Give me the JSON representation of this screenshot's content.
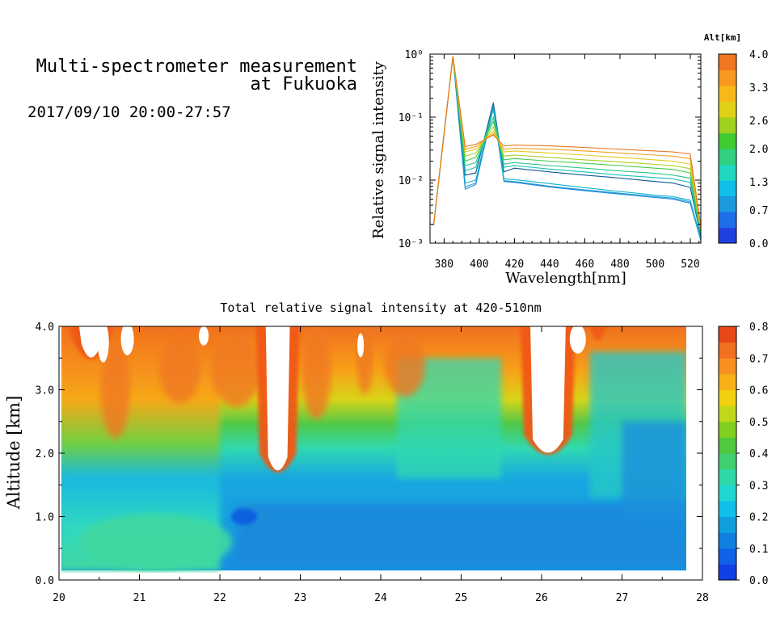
{
  "header": {
    "title_line1": "Multi-spectrometer measurement",
    "title_line2": "at Fukuoka",
    "datetime": "2017/09/10 20:00-27:57"
  },
  "chart_data": [
    {
      "type": "line",
      "xlabel": "Wavelength[nm]",
      "ylabel": "Relative signal intensity",
      "xlim": [
        372,
        526
      ],
      "ylim": [
        0.001,
        1
      ],
      "y_scale": "log",
      "x_ticks": [
        380,
        400,
        420,
        440,
        460,
        480,
        500,
        520
      ],
      "y_ticks": [
        {
          "value": 0.001,
          "label": "10⁻³"
        },
        {
          "value": 0.01,
          "label": "10⁻²"
        },
        {
          "value": 0.1,
          "label": "10⁻¹"
        },
        {
          "value": 1,
          "label": "10⁰"
        }
      ],
      "x": [
        374,
        385,
        392,
        398,
        408,
        414,
        420,
        440,
        460,
        480,
        500,
        510,
        520,
        526
      ],
      "series": [
        {
          "alt_km": 0.2,
          "color": "#1e88d8",
          "values": [
            0.0019,
            0.93,
            0.0072,
            0.0085,
            0.14,
            0.0095,
            0.0092,
            0.0078,
            0.0068,
            0.006,
            0.0053,
            0.005,
            0.0043,
            0.0011
          ]
        },
        {
          "alt_km": 0.5,
          "color": "#1c9ad8",
          "values": [
            0.0019,
            0.93,
            0.0078,
            0.009,
            0.15,
            0.0098,
            0.0095,
            0.008,
            0.007,
            0.0062,
            0.0055,
            0.0052,
            0.0045,
            0.0011
          ]
        },
        {
          "alt_km": 0.8,
          "color": "#10b2cc",
          "values": [
            0.0019,
            0.93,
            0.009,
            0.01,
            0.16,
            0.0105,
            0.0102,
            0.0088,
            0.0076,
            0.0066,
            0.0058,
            0.0055,
            0.0048,
            0.0012
          ]
        },
        {
          "alt_km": 1.1,
          "color": "#105a98",
          "values": [
            0.0019,
            0.93,
            0.012,
            0.013,
            0.17,
            0.0135,
            0.0155,
            0.0135,
            0.012,
            0.0108,
            0.0095,
            0.009,
            0.0077,
            0.0013
          ]
        },
        {
          "alt_km": 1.4,
          "color": "#18c0b8",
          "values": [
            0.0019,
            0.93,
            0.014,
            0.016,
            0.13,
            0.016,
            0.017,
            0.015,
            0.0135,
            0.012,
            0.011,
            0.0105,
            0.0092,
            0.0014
          ]
        },
        {
          "alt_km": 1.6,
          "color": "#28c888",
          "values": [
            0.0019,
            0.93,
            0.017,
            0.019,
            0.1,
            0.018,
            0.019,
            0.017,
            0.0155,
            0.014,
            0.0128,
            0.012,
            0.0108,
            0.0015
          ]
        },
        {
          "alt_km": 2.0,
          "color": "#44cc44",
          "values": [
            0.0019,
            0.93,
            0.02,
            0.023,
            0.085,
            0.021,
            0.022,
            0.02,
            0.0185,
            0.017,
            0.0155,
            0.0148,
            0.013,
            0.0015
          ]
        },
        {
          "alt_km": 2.4,
          "color": "#a8d020",
          "values": [
            0.0019,
            0.93,
            0.024,
            0.027,
            0.07,
            0.024,
            0.025,
            0.023,
            0.021,
            0.0195,
            0.0178,
            0.017,
            0.0152,
            0.0016
          ]
        },
        {
          "alt_km": 2.8,
          "color": "#e8c818",
          "values": [
            0.0019,
            0.93,
            0.028,
            0.031,
            0.06,
            0.028,
            0.029,
            0.027,
            0.025,
            0.023,
            0.021,
            0.02,
            0.018,
            0.0017
          ]
        },
        {
          "alt_km": 3.2,
          "color": "#f0a020",
          "values": [
            0.0019,
            0.93,
            0.031,
            0.034,
            0.055,
            0.031,
            0.032,
            0.031,
            0.029,
            0.027,
            0.025,
            0.024,
            0.022,
            0.0018
          ]
        },
        {
          "alt_km": 3.6,
          "color": "#e87820",
          "values": [
            0.0019,
            0.93,
            0.034,
            0.037,
            0.052,
            0.035,
            0.036,
            0.035,
            0.033,
            0.031,
            0.029,
            0.028,
            0.026,
            0.0019
          ]
        }
      ],
      "colorbar": {
        "title": "Alt[km]",
        "range": [
          0.0,
          4.0
        ],
        "labels": [
          "4.0",
          "3.3",
          "2.6",
          "2.0",
          "1.3",
          "0.7",
          "0.0"
        ],
        "colors": [
          "#2040e0",
          "#1e6ee8",
          "#1c9ae0",
          "#10c0e8",
          "#20d8c0",
          "#30d080",
          "#40cc30",
          "#a0d020",
          "#e0d018",
          "#f8b818",
          "#f89820",
          "#f07820"
        ]
      }
    },
    {
      "type": "heatmap",
      "title": "Total relative signal intensity at 420-510nm",
      "xlabel": "",
      "ylabel": "Altitude [km]",
      "xlim": [
        20,
        28
      ],
      "ylim": [
        0.0,
        4.0
      ],
      "x_ticks": [
        20,
        21,
        22,
        23,
        24,
        25,
        26,
        27,
        28
      ],
      "y_ticks": [
        "0.0",
        "1.0",
        "2.0",
        "3.0",
        "4.0"
      ],
      "data_x_range": [
        20.0,
        27.8
      ],
      "data_y_range": [
        0.15,
        4.0
      ],
      "cloud_features_white": [
        {
          "x_center": 22.72,
          "half_width": 0.15,
          "base_km": 1.62
        },
        {
          "x_center": 26.08,
          "half_width": 0.22,
          "base_km": 1.9
        },
        {
          "x_center": 20.4,
          "half_width": 0.15,
          "base_km": 3.4
        },
        {
          "x_center": 26.7,
          "half_width": 0.03,
          "base_km": 3.7
        }
      ],
      "colorbar": {
        "range": [
          0.0,
          0.8
        ],
        "labels": [
          "0.8",
          "0.7",
          "0.6",
          "0.5",
          "0.4",
          "0.3",
          "0.2",
          "0.1",
          "0.0"
        ],
        "colors": [
          "#1040e8",
          "#1060e8",
          "#1080e0",
          "#10a0e0",
          "#10c0e8",
          "#20d8d0",
          "#30d8a8",
          "#40d070",
          "#50c840",
          "#80d020",
          "#c0d818",
          "#f0d010",
          "#f8b018",
          "#f89020",
          "#f07020",
          "#e84818"
        ]
      }
    }
  ]
}
